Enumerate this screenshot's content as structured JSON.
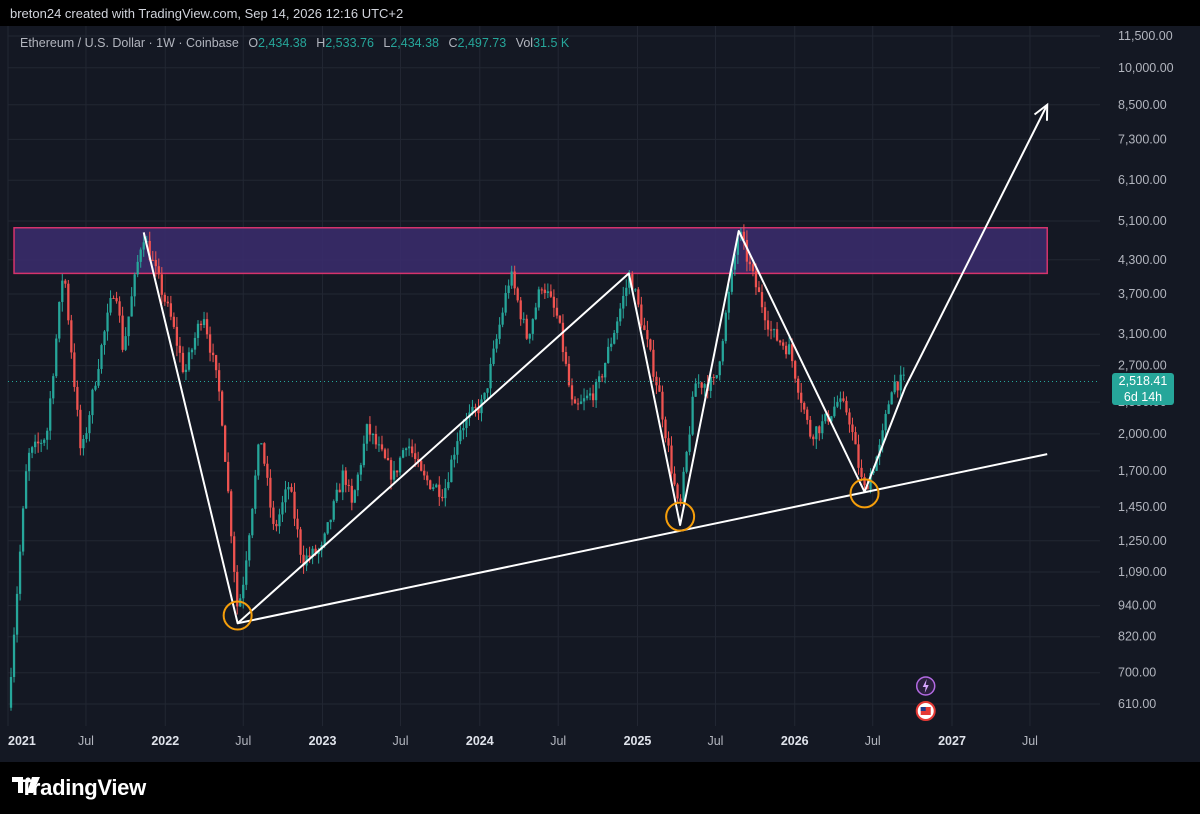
{
  "attribution": "breton24 created with TradingView.com, Sep 14, 2026 12:16 UTC+2",
  "legend": {
    "symbol": "Ethereum / U.S. Dollar · 1W · Coinbase",
    "o_label": "O",
    "o": "2,434.38",
    "h_label": "H",
    "h": "2,533.76",
    "l_label": "L",
    "l": "2,434.38",
    "c_label": "C",
    "c": "2,497.73",
    "vol_label": "Vol",
    "vol": "31.5 K"
  },
  "price_tag": {
    "price": "2,518.41",
    "countdown": "6d 14h"
  },
  "brand": {
    "name": "TradingView"
  },
  "icons": [
    "tradingview-logo-icon",
    "lightning-icon",
    "us-flag-icon"
  ],
  "colors": {
    "background": "#141823",
    "up": "#26a69a",
    "down": "#ef5350",
    "resistance_zone_fill": "#3b2d6e",
    "resistance_zone_border": "#d6336c",
    "drawing": "#ffffff",
    "highlight_circle": "#f59e0b"
  },
  "chart_data": {
    "type": "candlestick",
    "instrument": "Ethereum / U.S. Dollar",
    "timeframe": "1W",
    "exchange": "Coinbase",
    "y_scale": "log",
    "ylim": [
      560,
      12500
    ],
    "y_ticks": [
      11500,
      10000,
      8500,
      7300,
      6100,
      5100,
      4300,
      3700,
      3100,
      2700,
      2300,
      2000,
      1700,
      1450,
      1250,
      1090,
      940,
      820,
      700,
      610
    ],
    "y_tick_labels": [
      "11,500.00",
      "10,000.00",
      "8,500.00",
      "7,300.00",
      "6,100.00",
      "5,100.00",
      "4,300.00",
      "3,700.00",
      "3,100.00",
      "2,700.00",
      "2,300.00",
      "2,000.00",
      "1,700.00",
      "1,450.00",
      "1,250.00",
      "1,090.00",
      "940.00",
      "820.00",
      "700.00",
      "610.00"
    ],
    "x_ticks": [
      {
        "date": "2021-01-01",
        "label": "2021",
        "bold": true
      },
      {
        "date": "2021-07-01",
        "label": "Jul",
        "bold": false
      },
      {
        "date": "2022-01-01",
        "label": "2022",
        "bold": true
      },
      {
        "date": "2022-07-01",
        "label": "Jul",
        "bold": false
      },
      {
        "date": "2023-01-01",
        "label": "2023",
        "bold": true
      },
      {
        "date": "2023-07-01",
        "label": "Jul",
        "bold": false
      },
      {
        "date": "2024-01-01",
        "label": "2024",
        "bold": true
      },
      {
        "date": "2024-07-01",
        "label": "Jul",
        "bold": false
      },
      {
        "date": "2025-01-01",
        "label": "2025",
        "bold": true
      },
      {
        "date": "2025-07-01",
        "label": "Jul",
        "bold": false
      },
      {
        "date": "2026-01-01",
        "label": "2026",
        "bold": true
      },
      {
        "date": "2026-07-01",
        "label": "Jul",
        "bold": false
      },
      {
        "date": "2027-01-01",
        "label": "2027",
        "bold": true
      },
      {
        "date": "2027-07-01",
        "label": "Jul",
        "bold": false
      }
    ],
    "xlim": [
      "2021-01-01",
      "2027-09-01"
    ],
    "price_path": [
      [
        "2021-01-01",
        600
      ],
      [
        "2021-02-15",
        1800
      ],
      [
        "2021-04-01",
        2000
      ],
      [
        "2021-05-10",
        4200
      ],
      [
        "2021-06-20",
        1800
      ],
      [
        "2021-08-01",
        2800
      ],
      [
        "2021-09-07",
        3900
      ],
      [
        "2021-09-25",
        2900
      ],
      [
        "2021-11-10",
        4850
      ],
      [
        "2022-01-15",
        3300
      ],
      [
        "2022-02-15",
        2600
      ],
      [
        "2022-03-30",
        3450
      ],
      [
        "2022-05-10",
        2300
      ],
      [
        "2022-06-18",
        920
      ],
      [
        "2022-07-01",
        1050
      ],
      [
        "2022-08-10",
        2000
      ],
      [
        "2022-09-10",
        1300
      ],
      [
        "2022-10-15",
        1600
      ],
      [
        "2022-11-15",
        1150
      ],
      [
        "2022-12-30",
        1200
      ],
      [
        "2023-02-20",
        1700
      ],
      [
        "2023-03-10",
        1450
      ],
      [
        "2023-04-15",
        2050
      ],
      [
        "2023-06-15",
        1650
      ],
      [
        "2023-07-15",
        1950
      ],
      [
        "2023-08-20",
        1650
      ],
      [
        "2023-10-10",
        1550
      ],
      [
        "2023-11-15",
        2050
      ],
      [
        "2024-01-10",
        2300
      ],
      [
        "2024-03-12",
        4050
      ],
      [
        "2024-04-20",
        3050
      ],
      [
        "2024-05-25",
        3900
      ],
      [
        "2024-07-01",
        3300
      ],
      [
        "2024-08-05",
        2200
      ],
      [
        "2024-10-01",
        2450
      ],
      [
        "2024-11-10",
        3200
      ],
      [
        "2024-12-15",
        4050
      ],
      [
        "2025-02-20",
        2400
      ],
      [
        "2025-04-08",
        1400
      ],
      [
        "2025-05-15",
        2500
      ],
      [
        "2025-07-01",
        2500
      ],
      [
        "2025-08-24",
        4900
      ],
      [
        "2025-09-25",
        4000
      ],
      [
        "2025-11-10",
        3100
      ],
      [
        "2025-12-20",
        2900
      ],
      [
        "2026-02-05",
        2000
      ],
      [
        "2026-03-10",
        2100
      ],
      [
        "2026-04-10",
        2300
      ],
      [
        "2026-05-05",
        2200
      ],
      [
        "2026-06-10",
        1550
      ],
      [
        "2026-07-20",
        1900
      ],
      [
        "2026-08-15",
        2500
      ],
      [
        "2026-09-14",
        2518.41
      ]
    ],
    "current_price": 2518.41,
    "resistance_zone": {
      "from": "2021-01-15",
      "to": "2027-08-10",
      "low": 4050,
      "high": 4950
    },
    "annotations": {
      "zigzag": [
        [
          "2021-11-12",
          4850
        ],
        [
          "2022-06-18",
          870
        ],
        [
          "2024-12-12",
          4050
        ],
        [
          "2025-04-10",
          1340
        ],
        [
          "2025-08-24",
          4880
        ],
        [
          "2026-06-12",
          1550
        ],
        [
          "2026-09-14",
          2450
        ],
        [
          "2027-08-10",
          8500
        ]
      ],
      "trendline": {
        "from": [
          "2022-06-18",
          870
        ],
        "to": [
          "2027-08-10",
          1830
        ]
      },
      "circles": [
        [
          "2022-06-18",
          900
        ],
        [
          "2025-04-10",
          1390
        ],
        [
          "2026-06-12",
          1540
        ]
      ]
    }
  }
}
